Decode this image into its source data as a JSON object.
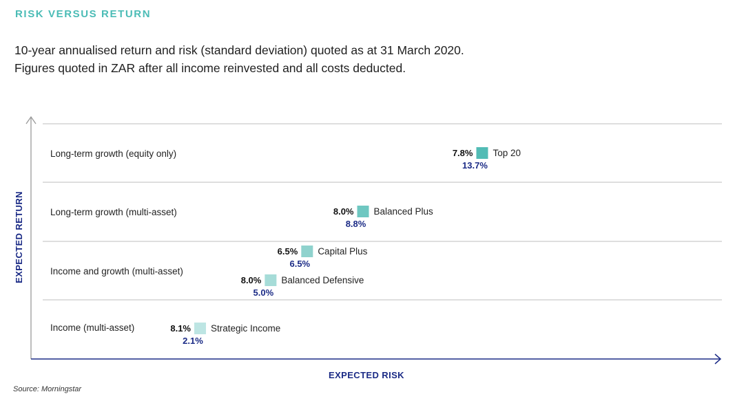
{
  "header": {
    "title": "RISK VERSUS RETURN",
    "subtitle_line1": "10-year annualised return and risk (standard deviation) quoted as at 31 March 2020.",
    "subtitle_line2": "Figures quoted in ZAR after all income reinvested and all costs deducted."
  },
  "footer": {
    "source": "Source: Morningstar"
  },
  "colors": {
    "accent": "#4bbcb6",
    "axis_text": "#1b2b86"
  },
  "chart_data": {
    "type": "scatter",
    "xlabel": "EXPECTED RISK",
    "ylabel": "EXPECTED RETURN",
    "bands": [
      "Income (multi-asset)",
      "Income and growth (multi-asset)",
      "Long-term growth (multi-asset)",
      "Long-term growth (equity only)"
    ],
    "points": [
      {
        "name": "Strategic Income",
        "return_label": "8.1%",
        "risk_label": "2.1%",
        "risk": 2.1,
        "band": 0,
        "color": "#bde5e3"
      },
      {
        "name": "Balanced Defensive",
        "return_label": "8.0%",
        "risk_label": "5.0%",
        "risk": 5.0,
        "band": 1,
        "color": "#a6dcd8"
      },
      {
        "name": "Capital Plus",
        "return_label": "6.5%",
        "risk_label": "6.5%",
        "risk": 6.5,
        "band": 1,
        "color": "#8fd2cd"
      },
      {
        "name": "Balanced Plus",
        "return_label": "8.0%",
        "risk_label": "8.8%",
        "risk": 8.8,
        "band": 2,
        "color": "#6ec7c1"
      },
      {
        "name": "Top 20",
        "return_label": "7.8%",
        "risk_label": "13.7%",
        "risk": 13.7,
        "band": 3,
        "color": "#52bcb5"
      }
    ]
  }
}
